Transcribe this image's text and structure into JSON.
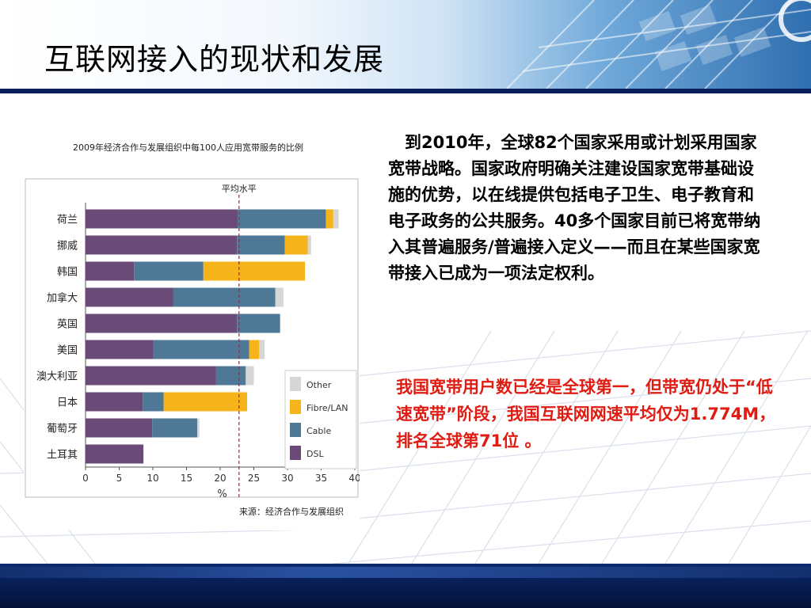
{
  "slide": {
    "title": "互联网接入的现状和发展",
    "paragraph1": "到2010年，全球82个国家采用或计划采用国家宽带战略。国家政府明确关注建设国家宽带基础设施的优势，以在线提供包括电子卫生、电子教育和电子政务的公共服务。40多个国家目前已将宽带纳入其普遍服务/普遍接入定义——而且在某些国家宽带接入已成为一项法定权利。",
    "paragraph2": "我国宽带用户数已经是全球第一，但带宽仍处于“低速宽带”阶段，我国互联网网速平均仅为1.774M，排名全球第71位 。",
    "colors": {
      "header_dark": "#0a1e5c",
      "highlight_text": "#e01b12"
    }
  },
  "chart_data": {
    "type": "bar",
    "orientation": "horizontal",
    "stacked": true,
    "title": "2009年经济合作与发展组织中每100人应用宽带服务的比例",
    "xlabel": "%",
    "xlim": [
      0,
      40
    ],
    "xticks": [
      0,
      5,
      10,
      15,
      20,
      25,
      30,
      35,
      40
    ],
    "categories": [
      "荷兰",
      "挪威",
      "韩国",
      "加拿大",
      "英国",
      "美国",
      "澳大利亚",
      "日本",
      "葡萄牙",
      "土耳其"
    ],
    "series": [
      {
        "name": "DSL",
        "color": "#6a4b78",
        "values": [
          22.6,
          22.5,
          7.2,
          13.0,
          22.5,
          10.1,
          19.4,
          8.5,
          9.9,
          8.6
        ]
      },
      {
        "name": "Cable",
        "color": "#4e7896",
        "values": [
          13.1,
          7.1,
          10.3,
          15.2,
          6.4,
          14.2,
          4.4,
          3.1,
          6.7,
          0.0
        ]
      },
      {
        "name": "Fibre/LAN",
        "color": "#f5b41a",
        "values": [
          1.1,
          3.4,
          15.1,
          0.0,
          0.0,
          1.5,
          0.0,
          12.4,
          0.0,
          0.0
        ]
      },
      {
        "name": "Other",
        "color": "#d6d6d6",
        "values": [
          0.8,
          0.5,
          0.0,
          1.2,
          0.0,
          0.8,
          1.2,
          0.0,
          0.3,
          0.0
        ]
      }
    ],
    "annotation": {
      "label": "平均水平",
      "value": 22.8
    },
    "source": "来源：经济合作与发展组织",
    "legend_position": "right"
  }
}
